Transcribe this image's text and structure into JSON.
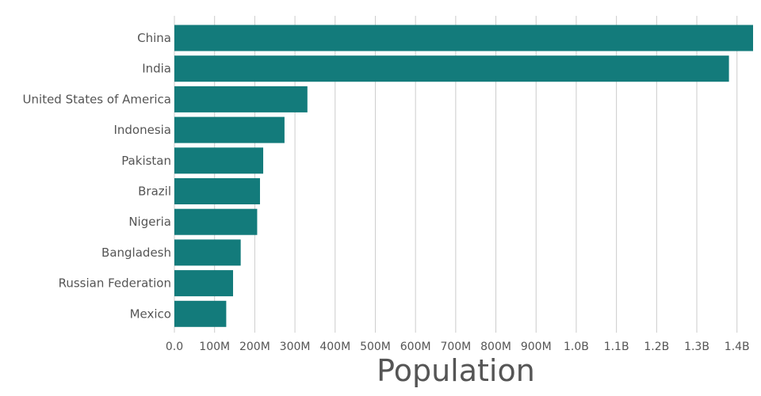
{
  "chart_data": {
    "type": "bar",
    "orientation": "horizontal",
    "categories": [
      "China",
      "India",
      "United States of America",
      "Indonesia",
      "Pakistan",
      "Brazil",
      "Nigeria",
      "Bangladesh",
      "Russian Federation",
      "Mexico"
    ],
    "values": [
      1440000000,
      1380000000,
      331000000,
      274000000,
      221000000,
      213000000,
      206000000,
      165000000,
      146000000,
      129000000
    ],
    "xlabel": "Population",
    "ylabel": "",
    "xlim": [
      0,
      1440000000
    ],
    "x_ticks": [
      0,
      100000000,
      200000000,
      300000000,
      400000000,
      500000000,
      600000000,
      700000000,
      800000000,
      900000000,
      1000000000,
      1100000000,
      1200000000,
      1300000000,
      1400000000
    ],
    "x_tick_labels": [
      "0.0",
      "100M",
      "200M",
      "300M",
      "400M",
      "500M",
      "600M",
      "700M",
      "800M",
      "900M",
      "1.0B",
      "1.1B",
      "1.2B",
      "1.3B",
      "1.4B"
    ],
    "grid": "vertical",
    "legend": "none",
    "bar_color": "#137b7b"
  }
}
